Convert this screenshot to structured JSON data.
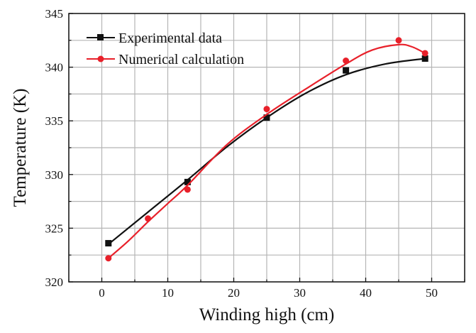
{
  "chart_data": {
    "type": "line",
    "xlabel": "Winding high (cm)",
    "ylabel": "Temperature (K)",
    "xlim": [
      -5,
      55
    ],
    "ylim": [
      320,
      345
    ],
    "xticks": [
      0,
      10,
      20,
      30,
      40,
      50
    ],
    "yticks": [
      320,
      325,
      330,
      335,
      340,
      345
    ],
    "grid": true,
    "legend_position": "top-left",
    "series": [
      {
        "name": "Experimental data",
        "color": "#111111",
        "marker": "square",
        "points": [
          [
            1,
            323.6
          ],
          [
            13,
            329.3
          ],
          [
            25,
            335.3
          ],
          [
            37,
            339.7
          ],
          [
            49,
            340.8
          ]
        ],
        "curve": [
          [
            1,
            323.5
          ],
          [
            7,
            326.5
          ],
          [
            13,
            329.5
          ],
          [
            19,
            332.6
          ],
          [
            25,
            335.3
          ],
          [
            31,
            337.6
          ],
          [
            37,
            339.3
          ],
          [
            43,
            340.3
          ],
          [
            49,
            340.8
          ]
        ]
      },
      {
        "name": "Numerical calculation",
        "color": "#e8202a",
        "marker": "circle",
        "points": [
          [
            1,
            322.2
          ],
          [
            7,
            325.9
          ],
          [
            13,
            328.6
          ],
          [
            25,
            336.1
          ],
          [
            37,
            340.6
          ],
          [
            45,
            342.5
          ],
          [
            49,
            341.3
          ]
        ],
        "curve": [
          [
            1,
            322.2
          ],
          [
            4,
            323.8
          ],
          [
            7,
            325.6
          ],
          [
            10,
            327.3
          ],
          [
            13,
            329.0
          ],
          [
            19,
            332.8
          ],
          [
            25,
            335.6
          ],
          [
            31,
            338.0
          ],
          [
            37,
            340.3
          ],
          [
            41,
            341.6
          ],
          [
            45,
            342.1
          ],
          [
            47,
            341.9
          ],
          [
            49,
            341.3
          ]
        ]
      }
    ]
  }
}
